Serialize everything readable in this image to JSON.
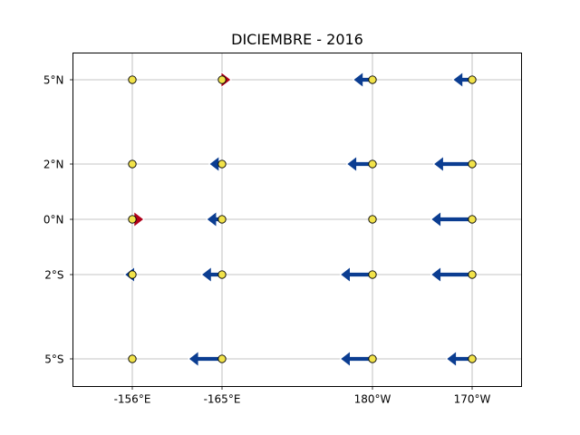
{
  "chart_data": {
    "type": "vector-map",
    "title": "DICIEMBRE - 2016",
    "grid": true,
    "x": {
      "positions": [
        -156,
        -165,
        180,
        170
      ],
      "tick_labels": [
        "-156°E",
        "-165°E",
        "180°W",
        "170°W"
      ]
    },
    "y": {
      "positions": [
        5,
        2,
        0,
        -2,
        -5
      ],
      "tick_labels": [
        "5°N",
        "2°N",
        "0°N",
        "2°S",
        "5°S"
      ]
    },
    "colors": {
      "eastward_arrow": "#b0001a",
      "westward_arrow": "#0b3d91",
      "station_marker": "#f2e34a",
      "grid": "#b0b0b0"
    },
    "stations": [
      {
        "lon": -156,
        "lat": 5,
        "u": 0,
        "direction": "none"
      },
      {
        "lon": -165,
        "lat": 5,
        "u": 0.7,
        "direction": "east"
      },
      {
        "lon": 180,
        "lat": 5,
        "u": -1.5,
        "direction": "west"
      },
      {
        "lon": 170,
        "lat": 5,
        "u": -1.5,
        "direction": "west"
      },
      {
        "lon": -156,
        "lat": 2,
        "u": 0,
        "direction": "none"
      },
      {
        "lon": -165,
        "lat": 2,
        "u": -1.0,
        "direction": "west"
      },
      {
        "lon": 180,
        "lat": 2,
        "u": -2.0,
        "direction": "west"
      },
      {
        "lon": 170,
        "lat": 2,
        "u": -3.0,
        "direction": "west"
      },
      {
        "lon": -156,
        "lat": 0,
        "u": 0.9,
        "direction": "east"
      },
      {
        "lon": -165,
        "lat": 0,
        "u": -1.2,
        "direction": "west"
      },
      {
        "lon": 180,
        "lat": 0,
        "u": 0,
        "direction": "none"
      },
      {
        "lon": 170,
        "lat": 0,
        "u": -3.2,
        "direction": "west"
      },
      {
        "lon": -156,
        "lat": -2,
        "u": -0.6,
        "direction": "west"
      },
      {
        "lon": -165,
        "lat": -2,
        "u": -1.6,
        "direction": "west"
      },
      {
        "lon": 180,
        "lat": -2,
        "u": -2.5,
        "direction": "west"
      },
      {
        "lon": 170,
        "lat": -2,
        "u": -3.2,
        "direction": "west"
      },
      {
        "lon": -156,
        "lat": -5,
        "u": 0,
        "direction": "none"
      },
      {
        "lon": -165,
        "lat": -5,
        "u": -2.6,
        "direction": "west"
      },
      {
        "lon": 180,
        "lat": -5,
        "u": -2.5,
        "direction": "west"
      },
      {
        "lon": 170,
        "lat": -5,
        "u": -2.0,
        "direction": "west"
      }
    ]
  }
}
